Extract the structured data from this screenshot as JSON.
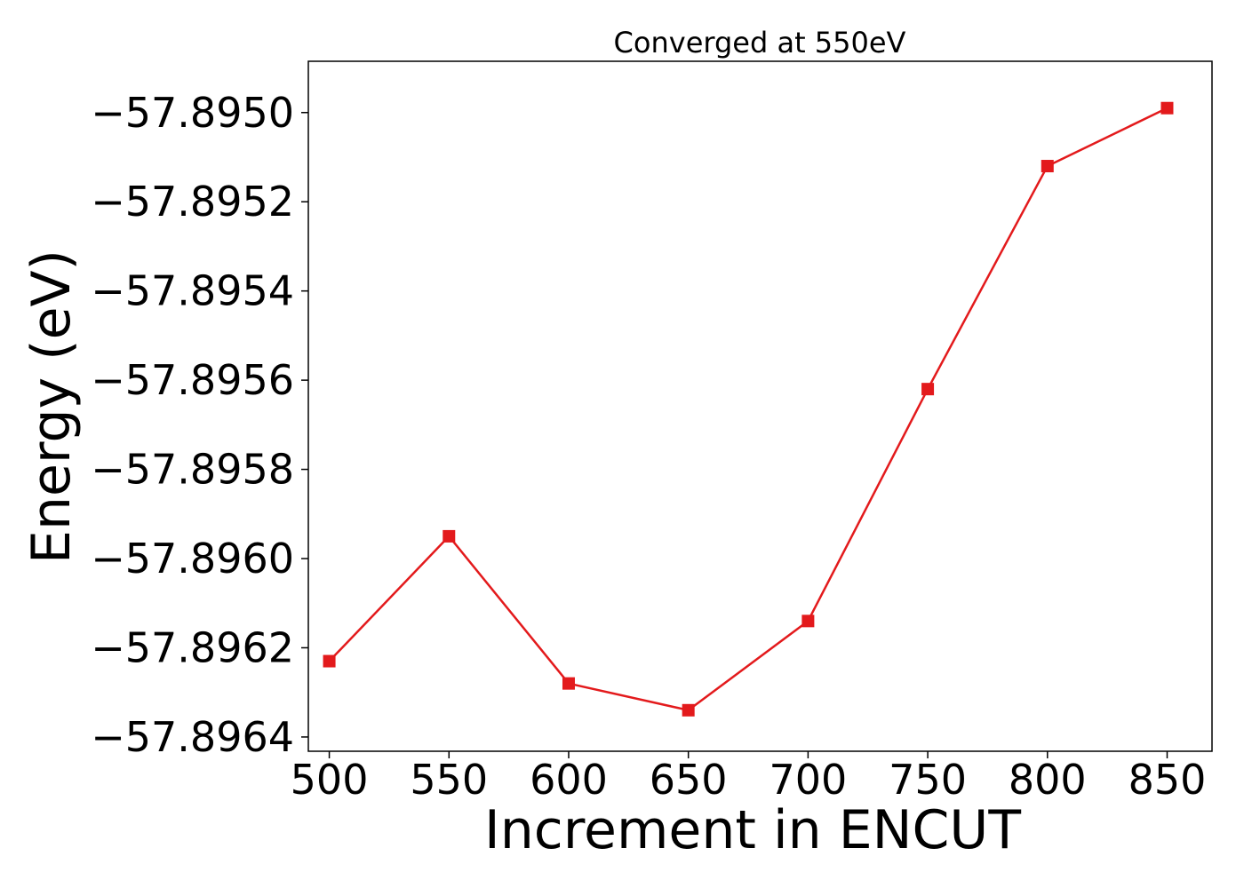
{
  "chart_data": {
    "type": "line",
    "title": "Converged at 550eV",
    "xlabel": "Increment in ENCUT",
    "ylabel": "Energy (eV)",
    "x": [
      500,
      550,
      600,
      650,
      700,
      750,
      800,
      850
    ],
    "series": [
      {
        "values": [
          -57.89623,
          -57.89595,
          -57.89628,
          -57.89634,
          -57.89614,
          -57.89562,
          -57.89512,
          -57.89499
        ],
        "color": "#e31a1c",
        "marker": "square"
      }
    ],
    "xticks": [
      500,
      550,
      600,
      650,
      700,
      750,
      800,
      850
    ],
    "xtick_labels": [
      "500",
      "550",
      "600",
      "650",
      "700",
      "750",
      "800",
      "850"
    ],
    "yticks": [
      -57.8964,
      -57.8962,
      -57.896,
      -57.8958,
      -57.8956,
      -57.8954,
      -57.8952,
      -57.895
    ],
    "ytick_labels": [
      "−57.8964",
      "−57.8962",
      "−57.8960",
      "−57.8958",
      "−57.8956",
      "−57.8954",
      "−57.8952",
      "−57.8950"
    ],
    "xlim": [
      491.25,
      868.75
    ],
    "ylim": [
      -57.896432,
      -57.894885
    ],
    "grid": false
  }
}
